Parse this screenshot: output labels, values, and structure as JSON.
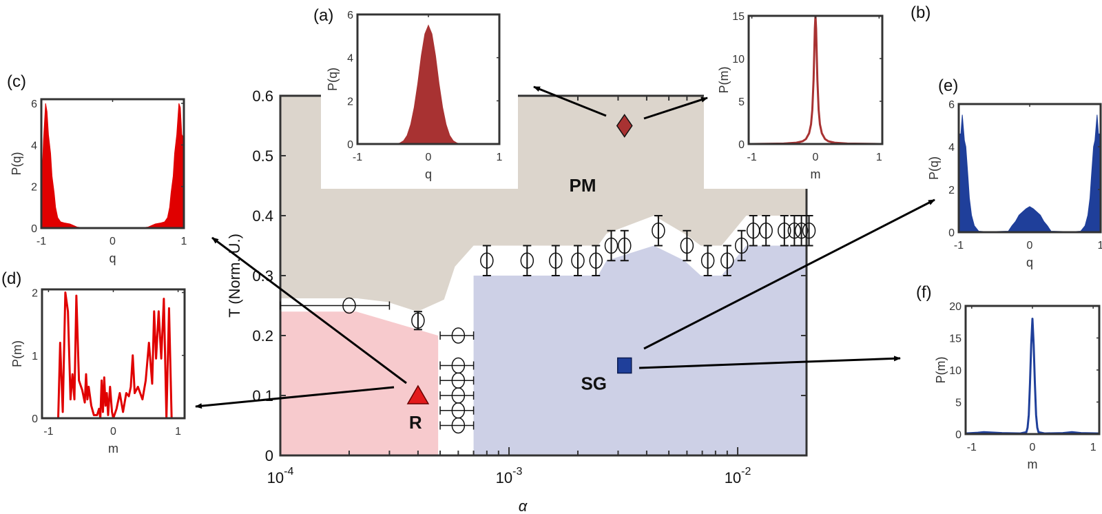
{
  "chart_data": [
    {
      "id": "main",
      "type": "scatter",
      "xscale": "log",
      "xlabel": "α",
      "ylabel": "T (Norm. U.)",
      "xlim": [
        0.0001,
        0.02
      ],
      "ylim": [
        0,
        0.6
      ],
      "xtick_values": [
        0.0001,
        0.001,
        0.01
      ],
      "xtick_labels": [
        {
          "base": "10",
          "exp": "-4"
        },
        {
          "base": "10",
          "exp": "-3"
        },
        {
          "base": "10",
          "exp": "-2"
        }
      ],
      "ytick_values": [
        0,
        0.1,
        0.2,
        0.3,
        0.4,
        0.5,
        0.6
      ],
      "ytick_labels": [
        "0",
        "0.1",
        "0.2",
        "0.3",
        "0.4",
        "0.5",
        "0.6"
      ],
      "grid": false,
      "regions": [
        {
          "label": "PM",
          "color": "#dcd5cc",
          "polygon": [
            [
              0.0001,
              0.6
            ],
            [
              0.02,
              0.6
            ],
            [
              0.02,
              0.4
            ],
            [
              0.0109,
              0.4
            ],
            [
              0.0085,
              0.35
            ],
            [
              0.0069,
              0.35
            ],
            [
              0.00585,
              0.37
            ],
            [
              0.0043,
              0.4
            ],
            [
              0.00267,
              0.37
            ],
            [
              0.00245,
              0.35
            ],
            [
              0.0007,
              0.35
            ],
            [
              0.00058,
              0.315
            ],
            [
              0.00052,
              0.26
            ],
            [
              0.000398,
              0.24
            ],
            [
              0.000294,
              0.256
            ],
            [
              0.000217,
              0.262
            ],
            [
              0.0001,
              0.262
            ]
          ]
        },
        {
          "label": "R",
          "color": "#f7cacd",
          "polygon": [
            [
              0.0001,
              0
            ],
            [
              0.0001,
              0.24
            ],
            [
              0.000215,
              0.24
            ],
            [
              0.00049,
              0.2
            ],
            [
              0.00049,
              0
            ]
          ]
        },
        {
          "label": "SG",
          "color": "#cdd0e6",
          "polygon": [
            [
              0.0007,
              0
            ],
            [
              0.0007,
              0.3
            ],
            [
              0.00245,
              0.3
            ],
            [
              0.00267,
              0.325
            ],
            [
              0.0043,
              0.35
            ],
            [
              0.00585,
              0.325
            ],
            [
              0.0069,
              0.3
            ],
            [
              0.0085,
              0.3
            ],
            [
              0.0109,
              0.35
            ],
            [
              0.02,
              0.35
            ],
            [
              0.02,
              0
            ]
          ]
        }
      ],
      "points": [
        {
          "alpha": 0.0002,
          "T": 0.25,
          "alpha_err": [
            0.0001,
            0.0003
          ]
        },
        {
          "alpha": 0.0004,
          "T": 0.225,
          "T_err": 0.015
        },
        {
          "alpha": 0.0006,
          "T": 0.2,
          "alpha_err": [
            0.0005,
            0.0007
          ]
        },
        {
          "alpha": 0.0006,
          "T": 0.15,
          "alpha_err": [
            0.0005,
            0.0007
          ]
        },
        {
          "alpha": 0.0006,
          "T": 0.125,
          "alpha_err": [
            0.0005,
            0.0007
          ]
        },
        {
          "alpha": 0.0006,
          "T": 0.1,
          "alpha_err": [
            0.0005,
            0.0007
          ]
        },
        {
          "alpha": 0.0006,
          "T": 0.075,
          "alpha_err": [
            0.0005,
            0.0007
          ]
        },
        {
          "alpha": 0.0006,
          "T": 0.05,
          "alpha_err": [
            0.0005,
            0.0007
          ]
        },
        {
          "alpha": 0.0008,
          "T": 0.325,
          "T_err": 0.025
        },
        {
          "alpha": 0.0012,
          "T": 0.325,
          "T_err": 0.025
        },
        {
          "alpha": 0.0016,
          "T": 0.325,
          "T_err": 0.025
        },
        {
          "alpha": 0.002,
          "T": 0.325,
          "T_err": 0.025
        },
        {
          "alpha": 0.0024,
          "T": 0.325,
          "T_err": 0.025
        },
        {
          "alpha": 0.0028,
          "T": 0.35,
          "T_err": 0.025
        },
        {
          "alpha": 0.0032,
          "T": 0.35,
          "T_err": 0.025
        },
        {
          "alpha": 0.0045,
          "T": 0.375,
          "T_err": 0.025
        },
        {
          "alpha": 0.006,
          "T": 0.35,
          "T_err": 0.025
        },
        {
          "alpha": 0.0074,
          "T": 0.325,
          "T_err": 0.025
        },
        {
          "alpha": 0.009,
          "T": 0.325,
          "T_err": 0.025
        },
        {
          "alpha": 0.0104,
          "T": 0.35,
          "T_err": 0.025
        },
        {
          "alpha": 0.0117,
          "T": 0.375,
          "T_err": 0.025
        },
        {
          "alpha": 0.0133,
          "T": 0.375,
          "T_err": 0.025
        },
        {
          "alpha": 0.016,
          "T": 0.375,
          "T_err": 0.025
        },
        {
          "alpha": 0.0177,
          "T": 0.375,
          "T_err": 0.025
        },
        {
          "alpha": 0.019,
          "T": 0.375,
          "T_err": 0.025
        },
        {
          "alpha": 0.0205,
          "T": 0.375,
          "T_err": 0.025
        }
      ],
      "markers": [
        {
          "label": "R",
          "shape": "triangle",
          "color": "#e31a1c",
          "alpha": 0.0004,
          "T": 0.1
        },
        {
          "label": "SG",
          "shape": "square",
          "color": "#1f3f9a",
          "alpha": 0.0032,
          "T": 0.15
        },
        {
          "label": "",
          "shape": "diamond",
          "color": "#a83232",
          "alpha": 0.0032,
          "T": 0.55
        }
      ],
      "phase_labels": [
        {
          "text": "PM",
          "alpha": 0.0021,
          "T": 0.44
        },
        {
          "text": "SG",
          "alpha": 0.00235,
          "T": 0.11
        },
        {
          "text": "R",
          "alpha": 0.00039,
          "T": 0.045
        }
      ]
    },
    {
      "id": "a",
      "panel_label": "(a)",
      "type": "area",
      "color": "#a83232",
      "xlabel": "q",
      "ylabel": "P(q)",
      "xlim": [
        -1,
        1
      ],
      "ylim": [
        0,
        6
      ],
      "xtick_values": [
        -1,
        0,
        1
      ],
      "xtick_labels": [
        "-1",
        "0",
        "1"
      ],
      "ytick_values": [
        0,
        2,
        4,
        6
      ],
      "ytick_labels": [
        "0",
        "2",
        "4",
        "6"
      ],
      "x": [
        -1,
        -0.5,
        -0.45,
        -0.4,
        -0.35,
        -0.3,
        -0.25,
        -0.2,
        -0.15,
        -0.1,
        -0.05,
        0,
        0.05,
        0.1,
        0.15,
        0.2,
        0.25,
        0.3,
        0.35,
        0.4,
        0.45,
        0.5,
        1
      ],
      "y": [
        0,
        0,
        0.01,
        0.05,
        0.15,
        0.4,
        0.9,
        1.7,
        2.8,
        4.1,
        5.1,
        5.5,
        5.1,
        4.1,
        2.8,
        1.7,
        0.9,
        0.4,
        0.15,
        0.05,
        0.01,
        0,
        0
      ]
    },
    {
      "id": "b",
      "panel_label": "(b)",
      "type": "line",
      "color": "#a83232",
      "xlabel": "m",
      "ylabel": "P(m)",
      "xlim": [
        -1.05,
        1.05
      ],
      "ylim": [
        0,
        15
      ],
      "xtick_values": [
        -1,
        0,
        1
      ],
      "xtick_labels": [
        "-1",
        "0",
        "1"
      ],
      "ytick_values": [
        0,
        5,
        10,
        15
      ],
      "ytick_labels": [
        "0",
        "5",
        "10",
        "15"
      ],
      "x": [
        -1,
        -0.5,
        -0.3,
        -0.2,
        -0.15,
        -0.1,
        -0.07,
        -0.05,
        -0.03,
        -0.02,
        -0.01,
        0,
        0.01,
        0.02,
        0.03,
        0.05,
        0.07,
        0.1,
        0.15,
        0.2,
        0.3,
        0.5,
        1
      ],
      "y": [
        0,
        0.05,
        0.15,
        0.33,
        0.58,
        1.26,
        2.3,
        3.97,
        7.5,
        10.4,
        13.5,
        15,
        13.5,
        10.4,
        7.5,
        3.97,
        2.3,
        1.26,
        0.58,
        0.33,
        0.15,
        0.05,
        0
      ]
    },
    {
      "id": "c",
      "panel_label": "(c)",
      "type": "area",
      "color": "#e00000",
      "xlabel": "q",
      "ylabel": "P(q)",
      "xlim": [
        -1,
        1
      ],
      "ylim": [
        0,
        6.2
      ],
      "xtick_values": [
        -1,
        0,
        1
      ],
      "xtick_labels": [
        "-1",
        "0",
        "1"
      ],
      "ytick_values": [
        0,
        2,
        4,
        6
      ],
      "ytick_labels": [
        "0",
        "2",
        "4",
        "6"
      ],
      "x": [
        -1,
        -0.97,
        -0.94,
        -0.92,
        -0.9,
        -0.87,
        -0.85,
        -0.82,
        -0.8,
        -0.77,
        -0.73,
        -0.68,
        -0.6,
        -0.5,
        -0.4,
        0,
        0.4,
        0.5,
        0.6,
        0.68,
        0.73,
        0.77,
        0.8,
        0.82,
        0.85,
        0.87,
        0.9,
        0.93,
        0.95,
        0.97,
        1
      ],
      "y": [
        1.5,
        4.2,
        6,
        5.6,
        4.5,
        3.6,
        2.5,
        1.7,
        1.0,
        0.5,
        0.3,
        0.25,
        0.2,
        0.05,
        0.01,
        0,
        0.01,
        0.05,
        0.2,
        0.25,
        0.3,
        0.5,
        1.0,
        1.7,
        2.5,
        3.6,
        4.5,
        6,
        5.8,
        4.5,
        4.3
      ]
    },
    {
      "id": "d",
      "panel_label": "(d)",
      "type": "line",
      "color": "#e00000",
      "xlabel": "m",
      "ylabel": "P(m)",
      "xlim": [
        -1.1,
        1.1
      ],
      "ylim": [
        0,
        2.05
      ],
      "xtick_values": [
        -1,
        0,
        1
      ],
      "xtick_labels": [
        "-1",
        "0",
        "1"
      ],
      "ytick_values": [
        0,
        1,
        2
      ],
      "ytick_labels": [
        "0",
        "1",
        "2"
      ],
      "x": [
        -1.1,
        -0.85,
        -0.82,
        -0.78,
        -0.74,
        -0.7,
        -0.66,
        -0.63,
        -0.6,
        -0.57,
        -0.53,
        -0.48,
        -0.44,
        -0.42,
        -0.4,
        -0.38,
        -0.34,
        -0.3,
        -0.25,
        -0.22,
        -0.2,
        -0.18,
        -0.16,
        -0.14,
        -0.12,
        -0.1,
        -0.08,
        -0.05,
        -0.02,
        0,
        0.05,
        0.1,
        0.15,
        0.2,
        0.24,
        0.27,
        0.3,
        0.33,
        0.38,
        0.45,
        0.5,
        0.55,
        0.6,
        0.63,
        0.66,
        0.7,
        0.74,
        0.78,
        0.82,
        0.86,
        0.9,
        1.1
      ],
      "y": [
        0,
        0,
        1.2,
        0.1,
        2.0,
        1.7,
        0.3,
        0.7,
        0.3,
        1.95,
        0.6,
        0.45,
        0.25,
        0.7,
        0.3,
        0.5,
        0.2,
        0.05,
        0.05,
        0.15,
        0,
        0.6,
        0.1,
        0.65,
        0.2,
        0.4,
        0.05,
        0.5,
        0.1,
        0,
        0.15,
        0.4,
        0.1,
        0.4,
        0.35,
        0.5,
        1.0,
        0.4,
        0.5,
        0.3,
        0.6,
        1.2,
        0.55,
        1.7,
        0.95,
        1.7,
        0.95,
        1.9,
        0,
        1.75,
        0,
        0
      ]
    },
    {
      "id": "e",
      "panel_label": "(e)",
      "type": "area",
      "color": "#1f3f9a",
      "xlabel": "q",
      "ylabel": "P(q)",
      "xlim": [
        -1,
        1
      ],
      "ylim": [
        0,
        6
      ],
      "xtick_values": [
        -1,
        0,
        1
      ],
      "xtick_labels": [
        "-1",
        "0",
        "1"
      ],
      "ytick_values": [
        0,
        2,
        4,
        6
      ],
      "ytick_labels": [
        "0",
        "2",
        "4",
        "6"
      ],
      "x": [
        -1,
        -0.97,
        -0.95,
        -0.92,
        -0.9,
        -0.87,
        -0.85,
        -0.82,
        -0.78,
        -0.72,
        -0.6,
        -0.3,
        -0.25,
        -0.2,
        -0.15,
        -0.1,
        -0.05,
        0,
        0.05,
        0.1,
        0.15,
        0.2,
        0.25,
        0.3,
        0.6,
        0.72,
        0.78,
        0.82,
        0.85,
        0.87,
        0.9,
        0.92,
        0.95,
        0.97,
        1
      ],
      "y": [
        4.6,
        4.6,
        5.5,
        4.3,
        4.0,
        2.6,
        1.6,
        0.8,
        0.3,
        0.05,
        0.02,
        0.05,
        0.3,
        0.5,
        0.8,
        0.95,
        1.1,
        1.2,
        1.1,
        0.95,
        0.8,
        0.5,
        0.3,
        0.05,
        0.02,
        0.05,
        0.3,
        0.8,
        1.6,
        2.6,
        4.0,
        4.3,
        5.5,
        4.6,
        4.6
      ]
    },
    {
      "id": "f",
      "panel_label": "(f)",
      "type": "line",
      "color": "#1f3f9a",
      "xlabel": "m",
      "ylabel": "P(m)",
      "xlim": [
        -1.1,
        1.1
      ],
      "ylim": [
        0,
        20
      ],
      "xtick_values": [
        -1,
        0,
        1
      ],
      "xtick_labels": [
        "-1",
        "0",
        "1"
      ],
      "ytick_values": [
        0,
        5,
        10,
        15,
        20
      ],
      "ytick_labels": [
        "0",
        "5",
        "10",
        "15",
        "20"
      ],
      "x": [
        -1.1,
        -0.9,
        -0.8,
        -0.5,
        -0.2,
        -0.1,
        -0.08,
        -0.06,
        -0.04,
        -0.02,
        0,
        0.02,
        0.04,
        0.06,
        0.08,
        0.1,
        0.2,
        0.5,
        0.65,
        0.8,
        1.1
      ],
      "y": [
        0.1,
        0.2,
        0.3,
        0.15,
        0.1,
        0.3,
        1,
        3,
        8,
        14,
        18,
        14,
        8,
        3,
        1,
        0.3,
        0.1,
        0.15,
        0.3,
        0.15,
        0.1
      ]
    }
  ]
}
